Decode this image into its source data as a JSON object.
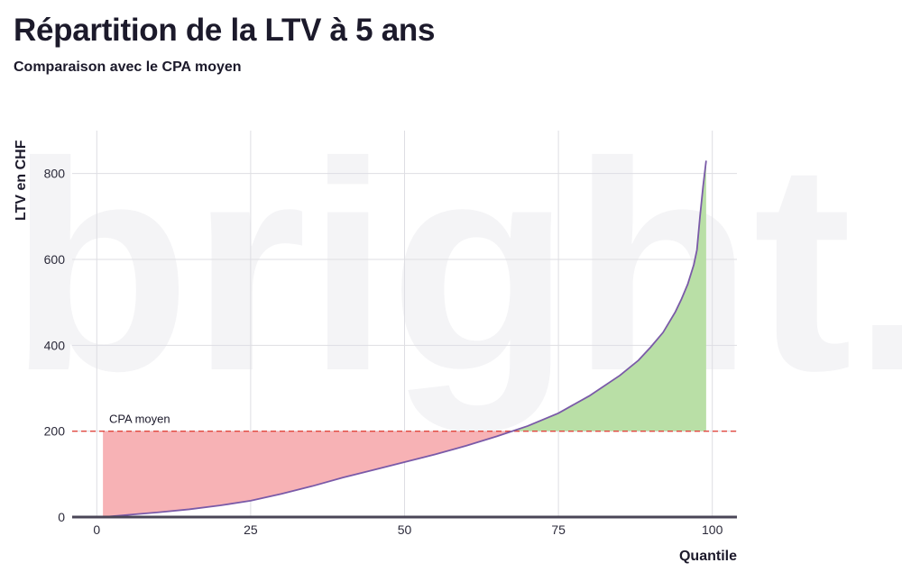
{
  "chart_data": {
    "type": "area",
    "title": "Répartition de la LTV à 5 ans",
    "subtitle": "Comparaison avec le CPA moyen",
    "xlabel": "Quantile",
    "ylabel": "LTV en CHF",
    "xlim": [
      -4,
      104
    ],
    "ylim": [
      0,
      900
    ],
    "xticks": [
      0,
      25,
      50,
      75,
      100
    ],
    "yticks": [
      0,
      200,
      400,
      600,
      800
    ],
    "grid": true,
    "watermark": "bright.",
    "reference_line": {
      "label": "CPA moyen",
      "y": 200,
      "color": "#e0473e"
    },
    "colors": {
      "line": "#7a5aa8",
      "below_fill": "#f7b2b5",
      "above_fill": "#b9dfa6",
      "axis": "#4a4657",
      "grid": "#dedee3"
    },
    "series": [
      {
        "x": [
          1,
          5,
          10,
          15,
          20,
          25,
          30,
          35,
          40,
          45,
          50,
          55,
          60,
          65,
          70,
          75,
          80,
          85,
          88,
          90,
          92,
          94,
          95,
          96,
          97,
          97.5,
          98,
          98.5,
          99
        ],
        "y": [
          0,
          5,
          11,
          18,
          27,
          38,
          54,
          72,
          92,
          110,
          128,
          146,
          166,
          188,
          212,
          242,
          282,
          330,
          365,
          396,
          430,
          478,
          508,
          542,
          588,
          622,
          700,
          770,
          830
        ]
      }
    ]
  }
}
